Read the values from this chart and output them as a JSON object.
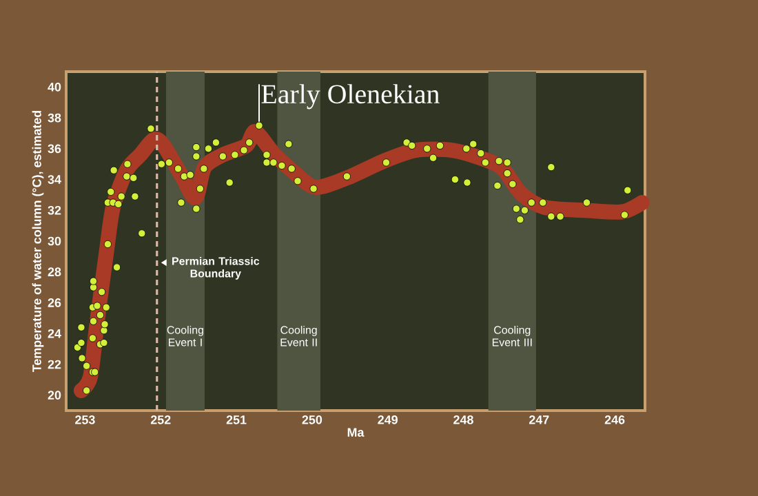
{
  "chart_data": {
    "type": "scatter",
    "xlabel": "Ma",
    "ylabel": "Temperature of water column (°C), estimated",
    "xlim": [
      253.25,
      245.6
    ],
    "ylim": [
      19,
      41
    ],
    "xticks": [
      253,
      252,
      251,
      250,
      249,
      248,
      247,
      246
    ],
    "yticks": [
      20,
      22,
      24,
      26,
      28,
      30,
      32,
      34,
      36,
      38,
      40
    ],
    "bands": [
      {
        "axis": "x",
        "from": 251.93,
        "to": 251.42,
        "label": "Cooling Event I",
        "color": "#4f5540"
      },
      {
        "axis": "x",
        "from": 250.46,
        "to": 249.89,
        "label": "Cooling Event II",
        "color": "#4f5540"
      },
      {
        "axis": "x",
        "from": 247.67,
        "to": 247.04,
        "label": "Cooling Event III",
        "color": "#4f5540"
      }
    ],
    "ref_lines": [
      {
        "axis": "x",
        "value": 252.05,
        "label": "Permian Triassic Boundary",
        "color": "#d9b8a8",
        "line_style": "dashed"
      }
    ],
    "annotations": [
      {
        "text": "Early Olenekian",
        "x": 250.7,
        "y": 37.5
      }
    ],
    "series": [
      {
        "type": "line",
        "color": "#a83a26",
        "marker": "none",
        "x": [
          253.05,
          252.93,
          252.84,
          252.72,
          252.63,
          252.45,
          252.27,
          252.09,
          251.96,
          251.72,
          251.54,
          251.42,
          251.18,
          250.87,
          250.75,
          250.51,
          250.27,
          249.96,
          249.54,
          249.05,
          248.63,
          248.15,
          247.72,
          247.48,
          247.24,
          246.93,
          246.39,
          245.9,
          245.64
        ],
        "values": [
          20.3,
          21.2,
          24.8,
          29.2,
          32.2,
          34.6,
          35.6,
          36.6,
          36.2,
          34.2,
          32.8,
          34.8,
          35.6,
          36.2,
          37.1,
          35.7,
          34.6,
          33.5,
          34.1,
          35.2,
          35.9,
          35.9,
          35.3,
          34.7,
          33.1,
          32.2,
          32.0,
          31.9,
          32.5
        ]
      },
      {
        "type": "scatter",
        "color": "#d4ef3a",
        "marker": "circle",
        "x": [
          253.1,
          253.05,
          253.05,
          253.04,
          252.98,
          252.98,
          252.9,
          252.87,
          252.9,
          252.89,
          252.9,
          252.89,
          252.89,
          252.84,
          252.8,
          252.78,
          252.8,
          252.75,
          252.75,
          252.74,
          252.72,
          252.7,
          252.7,
          252.66,
          252.63,
          252.62,
          252.58,
          252.56,
          252.52,
          252.45,
          252.44,
          252.36,
          252.34,
          252.25,
          252.13,
          251.99,
          251.89,
          251.77,
          251.73,
          251.69,
          251.61,
          251.53,
          251.53,
          251.48,
          251.53,
          251.43,
          251.37,
          251.27,
          251.18,
          251.09,
          251.02,
          250.9,
          250.83,
          250.7,
          250.6,
          250.6,
          250.51,
          250.4,
          250.31,
          250.27,
          250.19,
          249.98,
          249.54,
          249.02,
          248.75,
          248.68,
          248.48,
          248.4,
          248.31,
          248.11,
          247.96,
          247.95,
          247.87,
          247.77,
          247.71,
          247.55,
          247.53,
          247.42,
          247.42,
          247.35,
          247.3,
          247.25,
          247.19,
          247.1,
          246.95,
          246.84,
          246.84,
          246.72,
          246.37,
          245.87,
          245.83
        ],
        "values": [
          23.1,
          23.4,
          24.4,
          22.4,
          20.3,
          21.9,
          21.5,
          21.5,
          23.7,
          24.8,
          25.7,
          27.0,
          27.4,
          25.8,
          25.2,
          26.7,
          23.3,
          23.4,
          24.2,
          24.6,
          25.7,
          29.8,
          32.5,
          33.2,
          32.5,
          34.6,
          28.3,
          32.4,
          32.9,
          34.2,
          35.0,
          34.1,
          32.9,
          30.5,
          37.3,
          35.0,
          35.1,
          34.7,
          32.5,
          34.2,
          34.3,
          36.1,
          35.5,
          33.4,
          32.1,
          34.7,
          36.0,
          36.4,
          35.5,
          33.8,
          35.6,
          35.9,
          36.4,
          37.5,
          35.6,
          35.1,
          35.1,
          34.9,
          36.3,
          34.7,
          33.9,
          33.4,
          34.2,
          35.1,
          36.4,
          36.2,
          36.0,
          35.4,
          36.2,
          34.0,
          36.0,
          33.8,
          36.3,
          35.7,
          35.1,
          33.6,
          35.2,
          35.1,
          34.4,
          33.7,
          32.1,
          31.4,
          32.0,
          32.5,
          32.5,
          34.8,
          31.6,
          31.6,
          32.5,
          31.7,
          33.3
        ]
      }
    ]
  }
}
